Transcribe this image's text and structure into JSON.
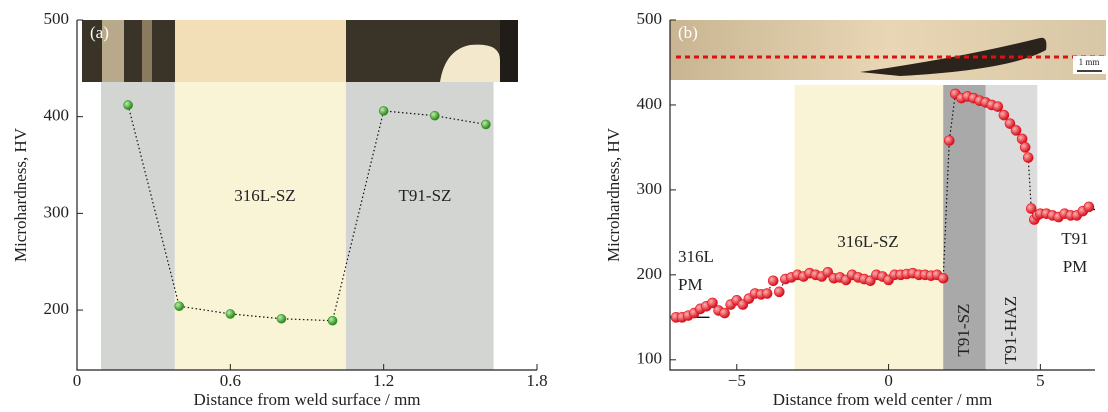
{
  "chart_data": [
    {
      "type": "line",
      "panel_label": "(a)",
      "xlabel": "Distance from weld surface / mm",
      "ylabel": "Microhardness, HV",
      "xlim": [
        0,
        1.8
      ],
      "xticks": [
        0,
        0.6,
        1.2,
        1.8
      ],
      "ylim": [
        138,
        500
      ],
      "yticks": [
        200,
        300,
        400,
        500
      ],
      "regions": [
        {
          "xlim": [
            0.094,
            0.383
          ],
          "color": "#d3d5d3"
        },
        {
          "xlim": [
            0.383,
            1.052
          ],
          "color": "#faf4d6"
        },
        {
          "xlim": [
            1.052,
            1.63
          ],
          "color": "#d3d5d3"
        }
      ],
      "annotations": [
        "316L-SZ",
        "T91-SZ"
      ],
      "series": [
        {
          "color": "#2e9a1c",
          "x": [
            0.2,
            0.4,
            0.6,
            0.8,
            1.0,
            1.2,
            1.4,
            1.6
          ],
          "values": [
            412,
            204,
            196,
            191,
            189,
            406,
            401,
            392
          ]
        }
      ]
    },
    {
      "type": "line",
      "panel_label": "(b)",
      "scale_bar": "1 mm",
      "xlabel": "Distance from weld center / mm",
      "ylabel": "Microhardness, HV",
      "xlim": [
        -7.2,
        6.8
      ],
      "xticks": [
        {
          "value": -5,
          "label": "−5"
        },
        0,
        5
      ],
      "ylim": [
        88,
        500
      ],
      "yticks": [
        100,
        200,
        300,
        400,
        500
      ],
      "regions": [
        {
          "xlim": [
            -3.1,
            1.8
          ],
          "color": "#faf4d6"
        },
        {
          "xlim": [
            1.8,
            3.2
          ],
          "color": "#a9a9a9"
        },
        {
          "xlim": [
            3.2,
            4.9
          ],
          "color": "#dcdcdc"
        }
      ],
      "annotations": [
        "316L",
        "PM",
        "316L-SZ",
        "T91-SZ",
        "T91-HAZ",
        "T91",
        "PM"
      ],
      "hlines": [
        {
          "y": 150,
          "xlim": [
            -7.2,
            -5.9
          ]
        },
        {
          "y": 277,
          "xlim": [
            6.5,
            6.8
          ]
        }
      ],
      "series": [
        {
          "color": "#e8141c",
          "x": [
            -7.0,
            -6.8,
            -6.6,
            -6.4,
            -6.2,
            -6.0,
            -5.8,
            -5.6,
            -5.4,
            -5.2,
            -5.0,
            -4.8,
            -4.6,
            -4.4,
            -4.2,
            -4.0,
            -3.8,
            -3.6,
            -3.4,
            -3.2,
            -3.0,
            -2.8,
            -2.6,
            -2.4,
            -2.2,
            -2.0,
            -1.8,
            -1.6,
            -1.4,
            -1.2,
            -1.0,
            -0.8,
            -0.6,
            -0.4,
            -0.2,
            0.0,
            0.2,
            0.4,
            0.6,
            0.8,
            1.0,
            1.2,
            1.4,
            1.6,
            1.8,
            2.0,
            2.2,
            2.4,
            2.6,
            2.8,
            3.0,
            3.2,
            3.4,
            3.6,
            3.8,
            4.0,
            4.2,
            4.4,
            4.5,
            4.6,
            4.7,
            4.8,
            4.9,
            5.0,
            5.2,
            5.4,
            5.6,
            5.8,
            6.0,
            6.2,
            6.4,
            6.6
          ],
          "values": [
            150,
            150,
            152,
            155,
            160,
            163,
            167,
            158,
            155,
            165,
            170,
            165,
            172,
            178,
            177,
            178,
            193,
            180,
            195,
            197,
            200,
            198,
            202,
            200,
            198,
            203,
            196,
            197,
            194,
            200,
            197,
            195,
            193,
            200,
            198,
            194,
            200,
            200,
            201,
            202,
            200,
            200,
            199,
            200,
            196,
            358,
            413,
            408,
            410,
            408,
            405,
            403,
            400,
            398,
            388,
            378,
            370,
            360,
            350,
            338,
            278,
            265,
            270,
            272,
            272,
            270,
            268,
            272,
            270,
            270,
            275,
            280
          ]
        }
      ]
    }
  ]
}
